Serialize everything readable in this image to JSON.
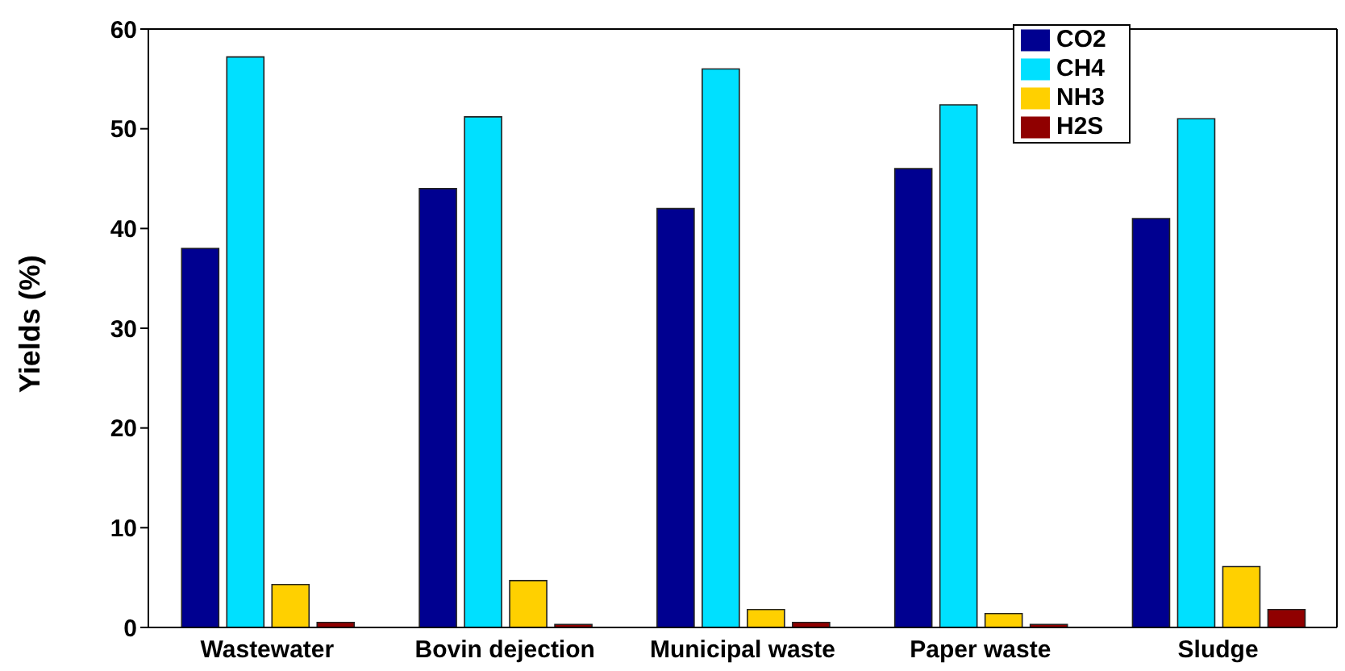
{
  "chart_data": {
    "type": "bar",
    "ylabel": "Yields (%)",
    "categories": [
      "Wastewater",
      "Bovin dejection",
      "Municipal waste",
      "Paper waste",
      "Sludge"
    ],
    "series": [
      {
        "name": "CO2",
        "color": "#000090",
        "values": [
          38,
          44,
          42,
          46,
          41
        ]
      },
      {
        "name": "CH4",
        "color": "#00e0ff",
        "values": [
          57.2,
          51.2,
          56,
          52.4,
          51
        ]
      },
      {
        "name": "NH3",
        "color": "#ffd000",
        "values": [
          4.3,
          4.7,
          1.8,
          1.4,
          6.1
        ]
      },
      {
        "name": "H2S",
        "color": "#900000",
        "values": [
          0.5,
          0.3,
          0.5,
          0.3,
          1.8
        ]
      }
    ],
    "ylim": [
      0,
      60
    ],
    "yticks": [
      0,
      10,
      20,
      30,
      40,
      50,
      60
    ],
    "grid": false,
    "legend": "top right"
  }
}
